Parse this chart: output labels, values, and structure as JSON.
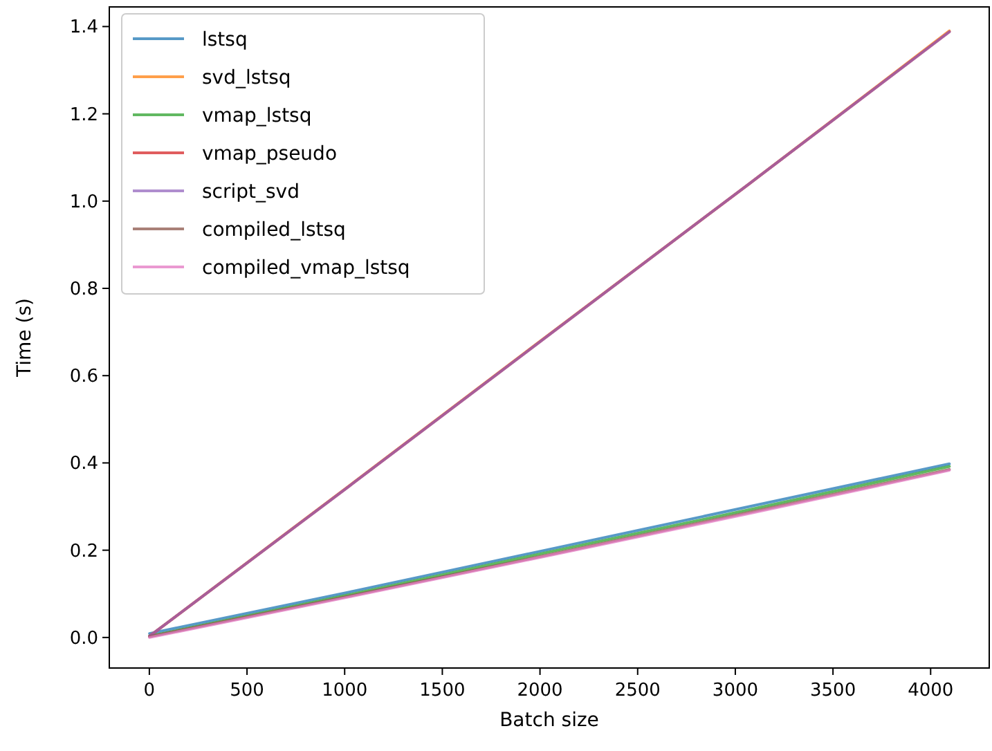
{
  "chart_data": {
    "type": "line",
    "xlabel": "Batch size",
    "ylabel": "Time (s)",
    "x": [
      1,
      1024,
      2048,
      3072,
      4096
    ],
    "xlim": [
      -205,
      4300
    ],
    "ylim": [
      -0.07,
      1.445
    ],
    "xticks": [
      0,
      500,
      1000,
      1500,
      2000,
      2500,
      3000,
      3500,
      4000
    ],
    "yticks": [
      {
        "value": 0,
        "label": "0.0"
      },
      {
        "value": 0.2,
        "label": "0.2"
      },
      {
        "value": 0.4,
        "label": "0.4"
      },
      {
        "value": 0.6,
        "label": "0.6"
      },
      {
        "value": 0.8,
        "label": "0.8"
      },
      {
        "value": 1.0,
        "label": "1.0"
      },
      {
        "value": 1.2,
        "label": "1.2"
      },
      {
        "value": 1.4,
        "label": "1.4"
      }
    ],
    "legend": "top left",
    "grid": false,
    "marker": "none",
    "line_style": "solid",
    "series": [
      {
        "name": "lstsq",
        "color": "#1f77b4",
        "values": [
          0.009,
          0.104,
          0.202,
          0.3,
          0.398
        ]
      },
      {
        "name": "svd_lstsq",
        "color": "#ff7f0e",
        "values": [
          0.003,
          0.348,
          0.695,
          1.04,
          1.39
        ]
      },
      {
        "name": "vmap_lstsq",
        "color": "#2ca02c",
        "values": [
          0.003,
          0.098,
          0.196,
          0.293,
          0.392
        ]
      },
      {
        "name": "vmap_pseudo",
        "color": "#d62728",
        "values": [
          0.003,
          0.347,
          0.694,
          1.04,
          1.388
        ]
      },
      {
        "name": "script_svd",
        "color": "#9467bd",
        "values": [
          0.003,
          0.347,
          0.694,
          1.04,
          1.388
        ]
      },
      {
        "name": "compiled_lstsq",
        "color": "#8c564b",
        "values": [
          0.002,
          0.095,
          0.19,
          0.287,
          0.385
        ]
      },
      {
        "name": "compiled_vmap_lstsq",
        "color": "#e377c2",
        "values": [
          0.0,
          0.093,
          0.188,
          0.284,
          0.383
        ]
      }
    ]
  }
}
